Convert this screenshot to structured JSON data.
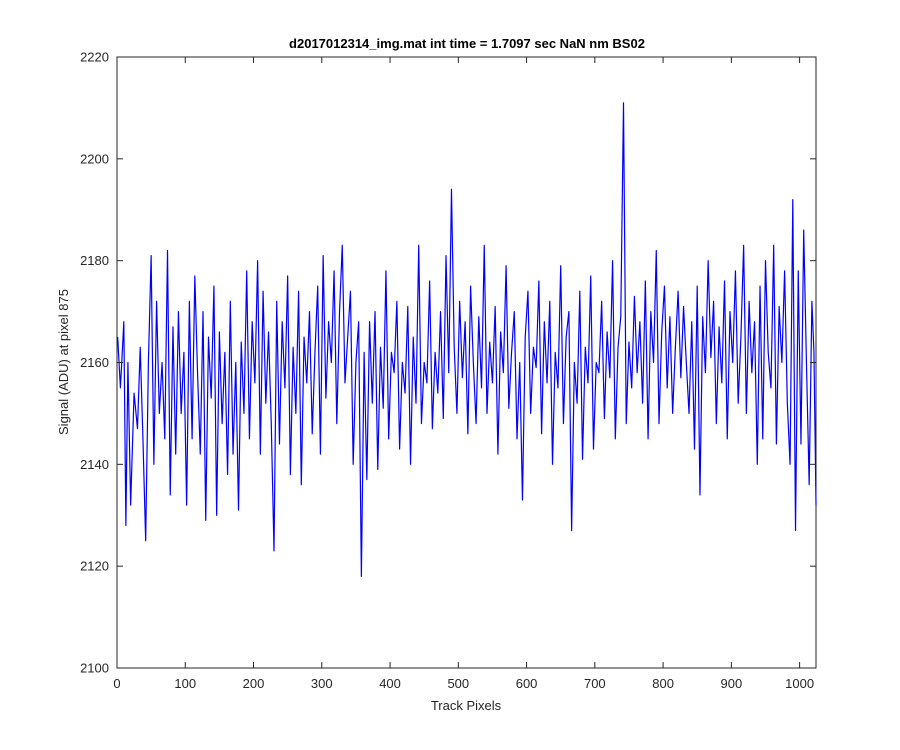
{
  "chart_data": {
    "type": "line",
    "title": "d2017012314_img.mat int time = 1.7097 sec  NaN nm BS02",
    "xlabel": "Track Pixels",
    "ylabel": "Signal (ADU) at pixel 875",
    "xlim": [
      0,
      1024
    ],
    "ylim": [
      2100,
      2220
    ],
    "xticks": [
      "0",
      "100",
      "200",
      "300",
      "400",
      "500",
      "600",
      "700",
      "800",
      "900",
      "1000"
    ],
    "yticks": [
      "2100",
      "2120",
      "2140",
      "2160",
      "2180",
      "2200",
      "2220"
    ],
    "grid": false,
    "line_color": "#0000ff",
    "series": [
      {
        "x": [
          1,
          5,
          10,
          13,
          16,
          20,
          25,
          30,
          34,
          38,
          42,
          46,
          50,
          54,
          58,
          62,
          66,
          70,
          74,
          78,
          82,
          86,
          90,
          94,
          98,
          102,
          106,
          110,
          114,
          118,
          122,
          126,
          130,
          134,
          138,
          142,
          146,
          150,
          154,
          158,
          162,
          166,
          170,
          174,
          178,
          182,
          186,
          190,
          194,
          198,
          202,
          206,
          210,
          214,
          218,
          222,
          226,
          230,
          234,
          238,
          242,
          246,
          250,
          254,
          258,
          262,
          266,
          270,
          274,
          278,
          282,
          286,
          290,
          294,
          298,
          302,
          306,
          310,
          314,
          318,
          322,
          326,
          330,
          334,
          338,
          342,
          346,
          350,
          354,
          358,
          362,
          366,
          370,
          374,
          378,
          382,
          386,
          390,
          394,
          398,
          402,
          406,
          410,
          414,
          418,
          422,
          426,
          430,
          434,
          438,
          442,
          446,
          450,
          454,
          458,
          462,
          466,
          470,
          474,
          478,
          482,
          486,
          490,
          494,
          498,
          502,
          506,
          510,
          514,
          518,
          522,
          526,
          530,
          534,
          538,
          542,
          546,
          550,
          554,
          558,
          562,
          566,
          570,
          574,
          578,
          582,
          586,
          590,
          594,
          598,
          602,
          606,
          610,
          614,
          618,
          622,
          626,
          630,
          634,
          638,
          642,
          646,
          650,
          654,
          658,
          662,
          666,
          670,
          674,
          678,
          682,
          686,
          690,
          694,
          698,
          702,
          706,
          710,
          714,
          718,
          722,
          726,
          730,
          734,
          738,
          742,
          746,
          750,
          754,
          758,
          762,
          766,
          770,
          774,
          778,
          782,
          786,
          790,
          794,
          798,
          802,
          806,
          810,
          814,
          818,
          822,
          826,
          830,
          834,
          838,
          842,
          846,
          850,
          854,
          858,
          862,
          866,
          870,
          874,
          878,
          882,
          886,
          890,
          894,
          898,
          902,
          906,
          910,
          914,
          918,
          922,
          926,
          930,
          934,
          938,
          942,
          946,
          950,
          954,
          958,
          962,
          966,
          970,
          974,
          978,
          982,
          986,
          990,
          994,
          998,
          1002,
          1006,
          1010,
          1014,
          1018,
          1021,
          1024
        ],
        "y": [
          2165,
          2155,
          2168,
          2128,
          2160,
          2132,
          2154,
          2147,
          2163,
          2145,
          2125,
          2160,
          2181,
          2140,
          2172,
          2150,
          2160,
          2145,
          2182,
          2134,
          2167,
          2142,
          2170,
          2150,
          2162,
          2132,
          2172,
          2145,
          2177,
          2158,
          2142,
          2170,
          2129,
          2165,
          2153,
          2175,
          2130,
          2166,
          2148,
          2162,
          2138,
          2172,
          2142,
          2160,
          2131,
          2164,
          2150,
          2178,
          2145,
          2168,
          2156,
          2180,
          2142,
          2174,
          2152,
          2166,
          2148,
          2123,
          2172,
          2144,
          2168,
          2155,
          2177,
          2138,
          2163,
          2150,
          2174,
          2136,
          2165,
          2156,
          2170,
          2146,
          2162,
          2175,
          2142,
          2181,
          2153,
          2168,
          2160,
          2178,
          2148,
          2170,
          2183,
          2156,
          2165,
          2174,
          2140,
          2160,
          2168,
          2118,
          2162,
          2137,
          2168,
          2152,
          2170,
          2139,
          2163,
          2151,
          2178,
          2145,
          2162,
          2158,
          2172,
          2143,
          2160,
          2154,
          2171,
          2140,
          2165,
          2152,
          2183,
          2148,
          2160,
          2156,
          2176,
          2147,
          2162,
          2154,
          2170,
          2149,
          2181,
          2158,
          2194,
          2163,
          2150,
          2172,
          2157,
          2168,
          2146,
          2175,
          2160,
          2148,
          2169,
          2155,
          2183,
          2150,
          2164,
          2156,
          2171,
          2142,
          2166,
          2158,
          2179,
          2151,
          2162,
          2170,
          2145,
          2160,
          2133,
          2165,
          2174,
          2150,
          2163,
          2159,
          2176,
          2146,
          2168,
          2156,
          2172,
          2140,
          2162,
          2155,
          2179,
          2148,
          2165,
          2170,
          2127,
          2160,
          2152,
          2174,
          2141,
          2163,
          2156,
          2177,
          2143,
          2160,
          2158,
          2172,
          2149,
          2166,
          2157,
          2180,
          2145,
          2163,
          2169,
          2211,
          2148,
          2164,
          2155,
          2173,
          2158,
          2168,
          2152,
          2176,
          2145,
          2170,
          2160,
          2182,
          2148,
          2166,
          2175,
          2155,
          2169,
          2150,
          2163,
          2174,
          2157,
          2171,
          2160,
          2150,
          2168,
          2143,
          2175,
          2134,
          2169,
          2158,
          2180,
          2161,
          2172,
          2148,
          2167,
          2156,
          2176,
          2145,
          2170,
          2160,
          2178,
          2152,
          2165,
          2183,
          2150,
          2172,
          2158,
          2168,
          2140,
          2175,
          2145,
          2180,
          2162,
          2155,
          2183,
          2144,
          2171,
          2160,
          2178,
          2152,
          2140,
          2192,
          2127,
          2178,
          2144,
          2186,
          2160,
          2136,
          2172,
          2162,
          2132
        ]
      }
    ]
  }
}
